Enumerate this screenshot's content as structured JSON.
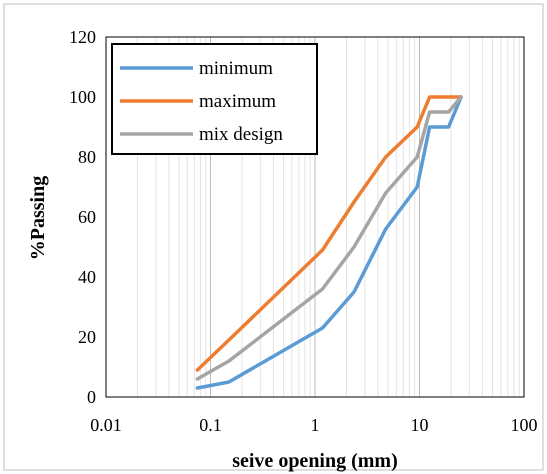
{
  "chart_data": {
    "type": "line",
    "xlabel": "seive opening (mm)",
    "ylabel": "%Passing",
    "xscale": "log",
    "xlim": [
      0.01,
      100
    ],
    "ylim": [
      0,
      120
    ],
    "x_ticks": [
      0.01,
      0.1,
      1,
      10,
      100
    ],
    "x_tick_labels": [
      "0.01",
      "0.1",
      "1",
      "10",
      "100"
    ],
    "y_ticks": [
      0,
      20,
      40,
      60,
      80,
      100,
      120
    ],
    "y_tick_labels": [
      "0",
      "20",
      "40",
      "60",
      "80",
      "100",
      "120"
    ],
    "grid": "vertical (major and minor, log scale)",
    "legend_position": "top-left",
    "series": [
      {
        "name": "minimum",
        "color": "#5B9BD5",
        "x": [
          0.075,
          0.15,
          1.18,
          2.36,
          4.75,
          9.5,
          12.5,
          19,
          25
        ],
        "y": [
          3,
          5,
          23,
          35,
          56,
          70,
          90,
          90,
          100
        ]
      },
      {
        "name": "maximum",
        "color": "#ED7D31",
        "x": [
          0.075,
          0.15,
          1.18,
          2.36,
          4.75,
          9.5,
          12.5,
          19,
          25
        ],
        "y": [
          9,
          19,
          49,
          65,
          80,
          90,
          100,
          100,
          100
        ]
      },
      {
        "name": "mix design",
        "color": "#A5A5A5",
        "x": [
          0.075,
          0.15,
          1.18,
          2.36,
          4.75,
          9.5,
          12.5,
          19,
          25
        ],
        "y": [
          6,
          12,
          36,
          50,
          68,
          80,
          95,
          95,
          100
        ]
      }
    ]
  }
}
